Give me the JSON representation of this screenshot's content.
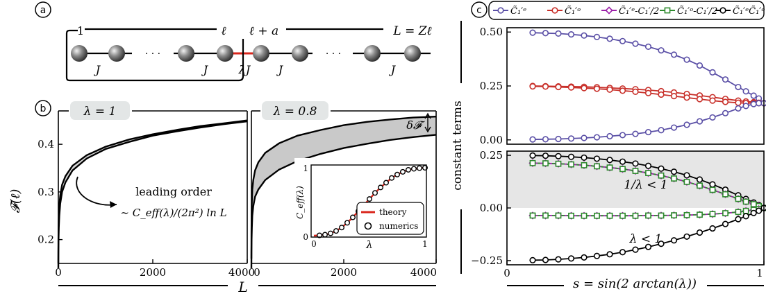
{
  "panel_labels": {
    "a": "a",
    "b": "b",
    "c": "c"
  },
  "chain": {
    "label_1": "1",
    "label_ell": "ℓ",
    "label_ell_a": "ℓ + a",
    "label_L": "L = Zℓ",
    "coupling_J": "J",
    "coupling_lambdaJ": "λJ",
    "lambda": "λ",
    "dots": "· · ·"
  },
  "chart_data": [
    {
      "type": "line",
      "panel": "b-left",
      "badge": "λ = 1",
      "xlabel": "L",
      "ylabel": "𝓕(ℓ)",
      "xlim": [
        0,
        4000
      ],
      "ylim": [
        0.15,
        0.47
      ],
      "xticks": [
        "0",
        "2000",
        "4000"
      ],
      "yticks": [
        "0.2",
        "0.3",
        "0.4"
      ],
      "annotation": {
        "line1": "leading order",
        "line2": "∼ C_eff(λ)/(2π²) ln L"
      },
      "series": [
        {
          "x": [
            0,
            2,
            5,
            10,
            20,
            40,
            80,
            150,
            300,
            600,
            1000,
            1500,
            2000,
            2500,
            3000,
            3500,
            4000
          ],
          "values": [
            0.14,
            0.175,
            0.2,
            0.225,
            0.25,
            0.275,
            0.3,
            0.32,
            0.345,
            0.37,
            0.39,
            0.405,
            0.418,
            0.427,
            0.435,
            0.442,
            0.448
          ]
        },
        {
          "x": [
            0,
            2,
            5,
            10,
            20,
            40,
            80,
            150,
            300,
            600,
            1000,
            1500,
            2000,
            2500,
            3000,
            3500,
            4000
          ],
          "values": [
            0.15,
            0.195,
            0.225,
            0.25,
            0.272,
            0.292,
            0.315,
            0.333,
            0.355,
            0.377,
            0.395,
            0.41,
            0.421,
            0.43,
            0.438,
            0.444,
            0.45
          ]
        }
      ]
    },
    {
      "type": "area",
      "panel": "b-right",
      "badge": "λ = 0.8",
      "xlabel": "L",
      "xlim": [
        0,
        4000
      ],
      "ylim": [
        0.15,
        0.47
      ],
      "xticks": [
        "0",
        "2000",
        "4000"
      ],
      "annotation": "δ𝓕",
      "series": [
        {
          "x": [
            0,
            2,
            5,
            10,
            20,
            40,
            80,
            150,
            300,
            600,
            1000,
            1500,
            2000,
            2500,
            3000,
            3500,
            4000
          ],
          "values": [
            0.14,
            0.175,
            0.2,
            0.225,
            0.25,
            0.27,
            0.29,
            0.305,
            0.325,
            0.347,
            0.365,
            0.38,
            0.392,
            0.401,
            0.409,
            0.415,
            0.42
          ]
        },
        {
          "x": [
            0,
            2,
            5,
            10,
            20,
            40,
            80,
            150,
            300,
            600,
            1000,
            1500,
            2000,
            2500,
            3000,
            3500,
            4000
          ],
          "values": [
            0.16,
            0.215,
            0.25,
            0.28,
            0.305,
            0.325,
            0.345,
            0.362,
            0.382,
            0.402,
            0.418,
            0.43,
            0.44,
            0.447,
            0.452,
            0.456,
            0.458
          ]
        }
      ]
    },
    {
      "type": "line",
      "panel": "b-inset",
      "xlabel": "λ",
      "ylabel": "C_eff(λ)",
      "xlim": [
        0,
        1
      ],
      "ylim": [
        0,
        1
      ],
      "xticks": [
        "0",
        "1"
      ],
      "yticks": [
        "0",
        "1"
      ],
      "legend": [
        "theory",
        "numerics"
      ],
      "theory": {
        "x": [
          0,
          0.05,
          0.1,
          0.15,
          0.2,
          0.25,
          0.3,
          0.35,
          0.4,
          0.45,
          0.5,
          0.55,
          0.6,
          0.65,
          0.7,
          0.75,
          0.8,
          0.85,
          0.9,
          0.95,
          1.0
        ],
        "values": [
          0,
          0.005,
          0.015,
          0.035,
          0.07,
          0.12,
          0.19,
          0.27,
          0.36,
          0.45,
          0.54,
          0.63,
          0.71,
          0.78,
          0.85,
          0.9,
          0.94,
          0.97,
          0.985,
          0.995,
          1.0
        ]
      },
      "numerics": {
        "x": [
          0.05,
          0.1,
          0.15,
          0.2,
          0.25,
          0.3,
          0.35,
          0.4,
          0.45,
          0.5,
          0.55,
          0.6,
          0.65,
          0.7,
          0.75,
          0.8,
          0.85,
          0.9,
          0.95,
          1.0
        ],
        "values": [
          0.005,
          0.015,
          0.035,
          0.07,
          0.12,
          0.19,
          0.27,
          0.36,
          0.45,
          0.54,
          0.63,
          0.71,
          0.78,
          0.85,
          0.9,
          0.94,
          0.97,
          0.985,
          0.995,
          1.0
        ]
      }
    },
    {
      "type": "line",
      "panel": "c-top",
      "ylabel": "constant terms",
      "xlim": [
        0,
        1
      ],
      "ylim": [
        0,
        0.5
      ],
      "yticks": [
        "0.00",
        "0.25",
        "0.50"
      ],
      "legend": [
        "C̃₁′ᵉ",
        "C̃₁′ᵒ",
        "C̃₁′ᵉ-C₁′/2",
        "C̃₁′ᵒ-C₁′/2",
        "C̃₁′ᵉC̃₁′ᵒ"
      ],
      "colors": [
        "#5a4fa6",
        "#c8302a",
        "#9b1fa8",
        "#2e8a2e",
        "#000000"
      ],
      "s": [
        0.1,
        0.15,
        0.2,
        0.25,
        0.3,
        0.35,
        0.4,
        0.45,
        0.5,
        0.55,
        0.6,
        0.65,
        0.7,
        0.75,
        0.8,
        0.85,
        0.9,
        0.93,
        0.96,
        0.98,
        1.0
      ],
      "series": [
        {
          "name": "C̃₁′ᵉ",
          "color": "#5a4fa6",
          "values": [
            0.497,
            0.495,
            0.493,
            0.489,
            0.484,
            0.477,
            0.469,
            0.458,
            0.446,
            0.432,
            0.415,
            0.395,
            0.372,
            0.345,
            0.313,
            0.28,
            0.245,
            0.225,
            0.205,
            0.192,
            0.17
          ]
        },
        {
          "name": "C̃₁′ᵒ upper",
          "color": "#c8302a",
          "values": [
            0.25,
            0.249,
            0.248,
            0.247,
            0.246,
            0.244,
            0.241,
            0.238,
            0.235,
            0.231,
            0.226,
            0.22,
            0.213,
            0.206,
            0.198,
            0.19,
            0.182,
            0.178,
            0.175,
            0.172,
            0.17
          ]
        },
        {
          "name": "C̃₁′ᵒ lower",
          "color": "#c8302a",
          "values": [
            0.248,
            0.247,
            0.245,
            0.243,
            0.24,
            0.237,
            0.233,
            0.228,
            0.223,
            0.217,
            0.21,
            0.203,
            0.196,
            0.189,
            0.182,
            0.176,
            0.172,
            0.171,
            0.17,
            0.17,
            0.17
          ]
        },
        {
          "name": "C̃₁′ᵉ lower",
          "color": "#5a4fa6",
          "values": [
            0.002,
            0.003,
            0.004,
            0.006,
            0.009,
            0.012,
            0.017,
            0.022,
            0.028,
            0.036,
            0.045,
            0.057,
            0.07,
            0.086,
            0.104,
            0.124,
            0.146,
            0.157,
            0.166,
            0.17,
            0.17
          ]
        }
      ]
    },
    {
      "type": "line",
      "panel": "c-bottom",
      "xlabel": "s = sin(2 arctan(λ))",
      "xlim": [
        0,
        1
      ],
      "ylim": [
        -0.27,
        0.27
      ],
      "xticks": [
        "0",
        "1"
      ],
      "yticks": [
        "−0.25",
        "0.00",
        "0.25"
      ],
      "region_labels": [
        "1/λ < 1",
        "λ < 1"
      ],
      "s": [
        0.1,
        0.15,
        0.2,
        0.25,
        0.3,
        0.35,
        0.4,
        0.45,
        0.5,
        0.55,
        0.6,
        0.65,
        0.7,
        0.75,
        0.8,
        0.85,
        0.9,
        0.93,
        0.96,
        0.98,
        1.0
      ],
      "series": [
        {
          "name": "C̃₁′ᵉC̃₁′ᵒ upper",
          "color": "#000000",
          "values": [
            0.249,
            0.248,
            0.246,
            0.243,
            0.239,
            0.234,
            0.228,
            0.22,
            0.211,
            0.2,
            0.187,
            0.172,
            0.155,
            0.135,
            0.112,
            0.087,
            0.06,
            0.043,
            0.026,
            0.014,
            0.0
          ]
        },
        {
          "name": "C̃₁′ᵉ-C₁′/2 upper",
          "color": "#9b1fa8",
          "values": [
            0.213,
            0.212,
            0.21,
            0.207,
            0.203,
            0.198,
            0.192,
            0.185,
            0.176,
            0.166,
            0.154,
            0.14,
            0.124,
            0.106,
            0.086,
            0.065,
            0.043,
            0.03,
            0.018,
            0.009,
            0.0
          ]
        },
        {
          "name": "C̃₁′ᵒ-C₁′/2 upper",
          "color": "#2e8a2e",
          "values": [
            0.213,
            0.212,
            0.21,
            0.207,
            0.203,
            0.198,
            0.192,
            0.185,
            0.176,
            0.166,
            0.154,
            0.14,
            0.124,
            0.106,
            0.086,
            0.065,
            0.043,
            0.03,
            0.018,
            0.009,
            0.0
          ]
        },
        {
          "name": "C̃₁′ᵉ-C₁′/2 lower",
          "color": "#9b1fa8",
          "values": [
            -0.036,
            -0.036,
            -0.036,
            -0.037,
            -0.037,
            -0.037,
            -0.037,
            -0.037,
            -0.037,
            -0.036,
            -0.036,
            -0.035,
            -0.034,
            -0.032,
            -0.029,
            -0.025,
            -0.019,
            -0.014,
            -0.009,
            -0.005,
            0.0
          ]
        },
        {
          "name": "C̃₁′ᵒ-C₁′/2 lower",
          "color": "#2e8a2e",
          "values": [
            -0.036,
            -0.036,
            -0.036,
            -0.037,
            -0.037,
            -0.037,
            -0.037,
            -0.037,
            -0.037,
            -0.036,
            -0.036,
            -0.035,
            -0.034,
            -0.032,
            -0.029,
            -0.025,
            -0.019,
            -0.014,
            -0.009,
            -0.005,
            0.0
          ]
        },
        {
          "name": "C̃₁′ᵉC̃₁′ᵒ lower",
          "color": "#000000",
          "values": [
            -0.248,
            -0.247,
            -0.244,
            -0.24,
            -0.235,
            -0.228,
            -0.22,
            -0.21,
            -0.198,
            -0.185,
            -0.17,
            -0.154,
            -0.136,
            -0.117,
            -0.097,
            -0.076,
            -0.053,
            -0.039,
            -0.024,
            -0.013,
            0.0
          ]
        }
      ]
    }
  ]
}
